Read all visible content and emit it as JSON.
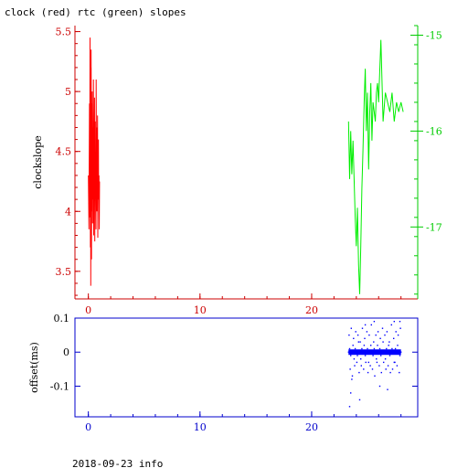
{
  "title": "clock (red) rtc (green) slopes",
  "footer": "2018-09-23 info",
  "colors": {
    "red": "#ff0000",
    "green": "#00ee00",
    "blue": "#0000ff",
    "axis_red": "#cc0000",
    "axis_green": "#00cc00",
    "axis_blue": "#0000cc"
  },
  "chart_data": [
    {
      "type": "line",
      "title": "clock (red) rtc (green) slopes",
      "ylabel": "clockslope",
      "xlim": [
        -1.2,
        29.5
      ],
      "ylim": [
        3.27,
        5.55
      ],
      "y2lim": [
        -17.75,
        -14.9
      ],
      "x_ticks": [
        0,
        10,
        20
      ],
      "x_tick_labels": [
        "0",
        "10",
        "20"
      ],
      "y_ticks": [
        3.5,
        4,
        4.5,
        5,
        5.5
      ],
      "y_tick_labels": [
        "3.5",
        "4",
        "4.5",
        "5",
        "5.5"
      ],
      "y2_ticks": [
        -17,
        -16,
        -15
      ],
      "y2_tick_labels": [
        "-17",
        "-16",
        "-15"
      ],
      "series": [
        {
          "axis": "left",
          "color": "#ff0000",
          "x": [
            0.0,
            0.05,
            0.1,
            0.12,
            0.15,
            0.18,
            0.2,
            0.22,
            0.25,
            0.28,
            0.3,
            0.32,
            0.35,
            0.38,
            0.4,
            0.42,
            0.45,
            0.48,
            0.5,
            0.52,
            0.55,
            0.58,
            0.6,
            0.62,
            0.65,
            0.68,
            0.7,
            0.72,
            0.75,
            0.78,
            0.8,
            0.82,
            0.85,
            0.88,
            0.9,
            0.92,
            0.95,
            0.98,
            1.0
          ],
          "y": [
            4.3,
            3.85,
            4.9,
            3.95,
            5.45,
            3.7,
            5.2,
            3.38,
            5.35,
            3.6,
            4.9,
            4.0,
            5.0,
            3.9,
            4.7,
            4.1,
            5.1,
            3.8,
            4.6,
            4.2,
            4.95,
            3.75,
            4.75,
            4.2,
            4.4,
            3.85,
            5.1,
            4.0,
            4.7,
            4.3,
            4.0,
            4.8,
            3.78,
            4.35,
            4.6,
            4.1,
            4.3,
            3.85,
            4.25
          ]
        },
        {
          "axis": "right",
          "color": "#00ee00",
          "x": [
            23.3,
            23.4,
            23.5,
            23.6,
            23.7,
            23.8,
            23.9,
            24.0,
            24.1,
            24.2,
            24.3,
            24.4,
            24.5,
            24.6,
            24.7,
            24.8,
            24.9,
            25.0,
            25.1,
            25.2,
            25.3,
            25.4,
            25.5,
            25.6,
            25.7,
            25.8,
            25.9,
            26.0,
            26.2,
            26.4,
            26.6,
            26.8,
            27.0,
            27.2,
            27.4,
            27.6,
            27.8,
            28.0,
            28.2
          ],
          "y": [
            -15.9,
            -16.5,
            -16.0,
            -16.45,
            -16.1,
            -16.5,
            -16.9,
            -17.2,
            -16.8,
            -17.4,
            -17.7,
            -17.2,
            -16.6,
            -16.2,
            -15.7,
            -15.35,
            -16.0,
            -15.6,
            -16.4,
            -15.8,
            -15.5,
            -16.1,
            -15.7,
            -15.8,
            -15.9,
            -15.6,
            -15.5,
            -15.7,
            -15.05,
            -15.9,
            -15.6,
            -15.7,
            -15.8,
            -15.6,
            -15.9,
            -15.7,
            -15.8,
            -15.7,
            -15.8
          ]
        }
      ]
    },
    {
      "type": "scatter",
      "ylabel": "offset(ms)",
      "xlim": [
        -1.2,
        29.5
      ],
      "ylim": [
        -0.19,
        0.1
      ],
      "x_ticks": [
        0,
        10,
        20
      ],
      "x_tick_labels": [
        "0",
        "10",
        "20"
      ],
      "y_ticks": [
        -0.1,
        0,
        0.1
      ],
      "y_tick_labels": [
        "-0.1",
        "0",
        "0.1"
      ],
      "series": [
        {
          "color": "#0000ff",
          "x": [
            23.3,
            23.4,
            23.5,
            23.6,
            23.7,
            23.8,
            23.9,
            24.0,
            24.1,
            24.2,
            24.3,
            24.4,
            24.5,
            24.6,
            24.7,
            24.8,
            24.9,
            25.0,
            25.1,
            25.2,
            25.3,
            25.4,
            25.5,
            25.6,
            25.7,
            25.8,
            25.9,
            26.0,
            26.1,
            26.2,
            26.3,
            26.4,
            26.5,
            26.6,
            26.7,
            26.8,
            26.9,
            27.0,
            27.1,
            27.2,
            27.3,
            27.4,
            27.5,
            27.6,
            27.7,
            27.8,
            27.9,
            28.0,
            23.35,
            23.45,
            23.55,
            23.65,
            23.75,
            23.85,
            23.95,
            24.05,
            24.15,
            24.25,
            24.35,
            24.45,
            24.55,
            24.65,
            24.75,
            24.85,
            24.95,
            25.05,
            25.15,
            25.25,
            25.35,
            25.45,
            25.55,
            25.65,
            25.75,
            25.85,
            25.95,
            26.05,
            26.15,
            26.25,
            26.35,
            26.45,
            26.55,
            26.65,
            26.75,
            26.85,
            26.95,
            27.05,
            27.15,
            27.25,
            27.35,
            27.45,
            27.55,
            27.65,
            27.75,
            27.85,
            27.95,
            23.5,
            24.3,
            25.6,
            26.8,
            27.4,
            23.4,
            24.8,
            26.1,
            27.9,
            23.6
          ],
          "y": [
            0.0,
            0.01,
            -0.01,
            0.0,
            0.02,
            -0.02,
            0.01,
            0.0,
            -0.01,
            0.03,
            0.0,
            -0.02,
            0.01,
            0.0,
            0.02,
            -0.01,
            0.0,
            0.01,
            -0.03,
            0.0,
            0.02,
            0.0,
            -0.01,
            0.01,
            0.0,
            -0.02,
            0.02,
            0.0,
            0.01,
            -0.01,
            0.0,
            0.03,
            0.0,
            -0.02,
            0.01,
            0.0,
            0.02,
            -0.01,
            0.0,
            0.01,
            0.0,
            -0.03,
            0.01,
            0.0,
            0.02,
            0.0,
            -0.01,
            0.0,
            0.05,
            -0.05,
            0.07,
            -0.07,
            0.04,
            -0.04,
            0.06,
            -0.03,
            0.05,
            -0.06,
            0.03,
            -0.04,
            0.07,
            -0.05,
            0.04,
            -0.03,
            0.06,
            -0.06,
            0.05,
            -0.04,
            0.08,
            -0.05,
            0.03,
            -0.07,
            0.05,
            -0.03,
            0.06,
            -0.04,
            0.04,
            -0.06,
            0.07,
            -0.03,
            0.05,
            -0.05,
            0.06,
            -0.04,
            0.03,
            -0.06,
            0.08,
            -0.05,
            0.04,
            -0.03,
            0.06,
            -0.04,
            0.05,
            -0.06,
            0.07,
            -0.12,
            -0.14,
            0.09,
            -0.11,
            0.09,
            -0.16,
            0.08,
            -0.1,
            0.09,
            -0.08
          ]
        }
      ]
    }
  ]
}
